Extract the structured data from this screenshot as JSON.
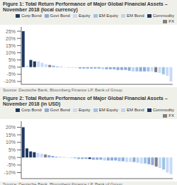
{
  "chart_data": [
    {
      "type": "bar",
      "title": "Figure 1: Total Return Performance of Major Global Financial Assets – November 2018 (local currency)",
      "categories": [
        null,
        null,
        null,
        null,
        null,
        null,
        null,
        null,
        null,
        null,
        null,
        null,
        null,
        null,
        null,
        null,
        null,
        null,
        null,
        null,
        null,
        null,
        null,
        null,
        null,
        null,
        null,
        null,
        null,
        null,
        null,
        null,
        null,
        null,
        null,
        null,
        null,
        null,
        null,
        null
      ],
      "values": [
        25,
        1,
        5,
        4,
        4,
        3,
        2,
        1.5,
        1,
        0.5,
        0.3,
        -0.2,
        -0.5,
        -0.5,
        -0.5,
        -1,
        -1,
        -1,
        -1,
        -1,
        -1,
        -1.5,
        -1.5,
        -1.5,
        -1.5,
        -2,
        -2,
        -2,
        -2.5,
        -3,
        -3,
        -3,
        -3,
        -3,
        -3,
        -3.5,
        -4,
        -5,
        -6,
        -10
      ],
      "colors": [
        "#1f3864",
        "#c9daf8",
        "#1f3864",
        "#1f3864",
        "#c9daf8",
        "#c9daf8",
        "#c9daf8",
        "#808080",
        "#8eaadb",
        "#8eaadb",
        "#8eaadb",
        "#c9daf8",
        "#c9daf8",
        "#c9daf8",
        "#c9daf8",
        "#8eaadb",
        "#8eaadb",
        "#8eaadb",
        "#8eaadb",
        "#8eaadb",
        "#8eaadb",
        "#bdd7ee",
        "#8eaadb",
        "#8eaadb",
        "#8eaadb",
        "#8eaadb",
        "#8eaadb",
        "#8eaadb",
        "#8eaadb",
        "#bdd7ee",
        "#9dc3e6",
        "#8eaadb",
        "#8eaadb",
        "#9dc3e6",
        "#c9daf8",
        "#808080",
        "#c9daf8",
        "#9dc3e6",
        "#c9daf8",
        "#c9daf8"
      ],
      "ylim": [
        -12,
        28
      ],
      "yticks": [
        {
          "value": -10,
          "label": "-10%"
        },
        {
          "value": -5,
          "label": "-5%"
        },
        {
          "value": 0,
          "label": "0%"
        },
        {
          "value": 5,
          "label": "5%"
        },
        {
          "value": 10,
          "label": "10%"
        },
        {
          "value": 15,
          "label": "15%"
        },
        {
          "value": 20,
          "label": "20%"
        },
        {
          "value": 25,
          "label": "25%"
        }
      ],
      "grid": false,
      "legend": "upper right",
      "legend_labels": [
        "Corp Bond",
        "Govt Bond",
        "Equity",
        "EM Equity",
        "EM Bond",
        "Commodity",
        "FX"
      ],
      "legend_colors": [
        "#1f3864",
        "#8eaadb",
        "#c9daf8",
        "#9dc3e6",
        "#bdd7ee",
        "#1f3864",
        "#808080"
      ],
      "annotation": "Source: Deutsche Bank, Bloomberg Finance LP, Bank of Group"
    },
    {
      "type": "bar",
      "title": "Figure 2: Total Return Performance of Major Global Financial Assets – November 2018 (in USD)",
      "categories": [
        null,
        null,
        null,
        null,
        null,
        null,
        null,
        null,
        null,
        null,
        null,
        null,
        null,
        null,
        null,
        null,
        null,
        null,
        null,
        null,
        null,
        null,
        null,
        null,
        null,
        null,
        null,
        null,
        null,
        null,
        null,
        null,
        null,
        null,
        null,
        null,
        null,
        null,
        null,
        null,
        null
      ],
      "values": [
        20,
        6,
        4,
        3.5,
        3,
        2.5,
        2,
        1.5,
        1,
        0.5,
        0.3,
        0.2,
        -0.3,
        -0.5,
        -0.5,
        -1,
        -1,
        -1,
        -1,
        -1.5,
        -1.5,
        -1.5,
        -2,
        -2,
        -2,
        -2,
        -2.5,
        -2.5,
        -3,
        -3,
        -3,
        -3.5,
        -4,
        -4,
        -4.5,
        -5,
        -6,
        -7,
        -8,
        -10,
        -11
      ],
      "colors": [
        "#1f3864",
        "#1f3864",
        "#1f3864",
        "#1f3864",
        "#c9daf8",
        "#c9daf8",
        "#808080",
        "#8eaadb",
        "#8eaadb",
        "#8eaadb",
        "#8eaadb",
        "#8eaadb",
        "#c9daf8",
        "#c9daf8",
        "#8eaadb",
        "#8eaadb",
        "#8eaadb",
        "#8eaadb",
        "#1f3864",
        "#8eaadb",
        "#8eaadb",
        "#8eaadb",
        "#bdd7ee",
        "#8eaadb",
        "#8eaadb",
        "#8eaadb",
        "#9dc3e6",
        "#8eaadb",
        "#c9daf8",
        "#c9daf8",
        "#8eaadb",
        "#bdd7ee",
        "#c9daf8",
        "#9dc3e6",
        "#8eaadb",
        "#8eaadb",
        "#808080",
        "#c9daf8",
        "#9dc3e6",
        "#c9daf8",
        "#c9daf8"
      ],
      "ylim": [
        -14,
        24
      ],
      "yticks": [
        {
          "value": -10,
          "label": "-10%"
        },
        {
          "value": -5,
          "label": "-5%"
        },
        {
          "value": 0,
          "label": "0%"
        },
        {
          "value": 5,
          "label": "5%"
        },
        {
          "value": 10,
          "label": "10%"
        },
        {
          "value": 15,
          "label": "15%"
        },
        {
          "value": 20,
          "label": "20%"
        }
      ],
      "grid": false,
      "legend": "upper right",
      "legend_labels": [
        "Corp Bond",
        "Govt Bond",
        "Equity",
        "EM Equity",
        "EM Bond",
        "Commodity",
        "FX"
      ],
      "legend_colors": [
        "#1f3864",
        "#8eaadb",
        "#c9daf8",
        "#9dc3e6",
        "#bdd7ee",
        "#1f3864",
        "#808080"
      ],
      "annotation": "Source: Deutsche Bank, Bloomberg Finance LP, Bank of Group"
    }
  ]
}
